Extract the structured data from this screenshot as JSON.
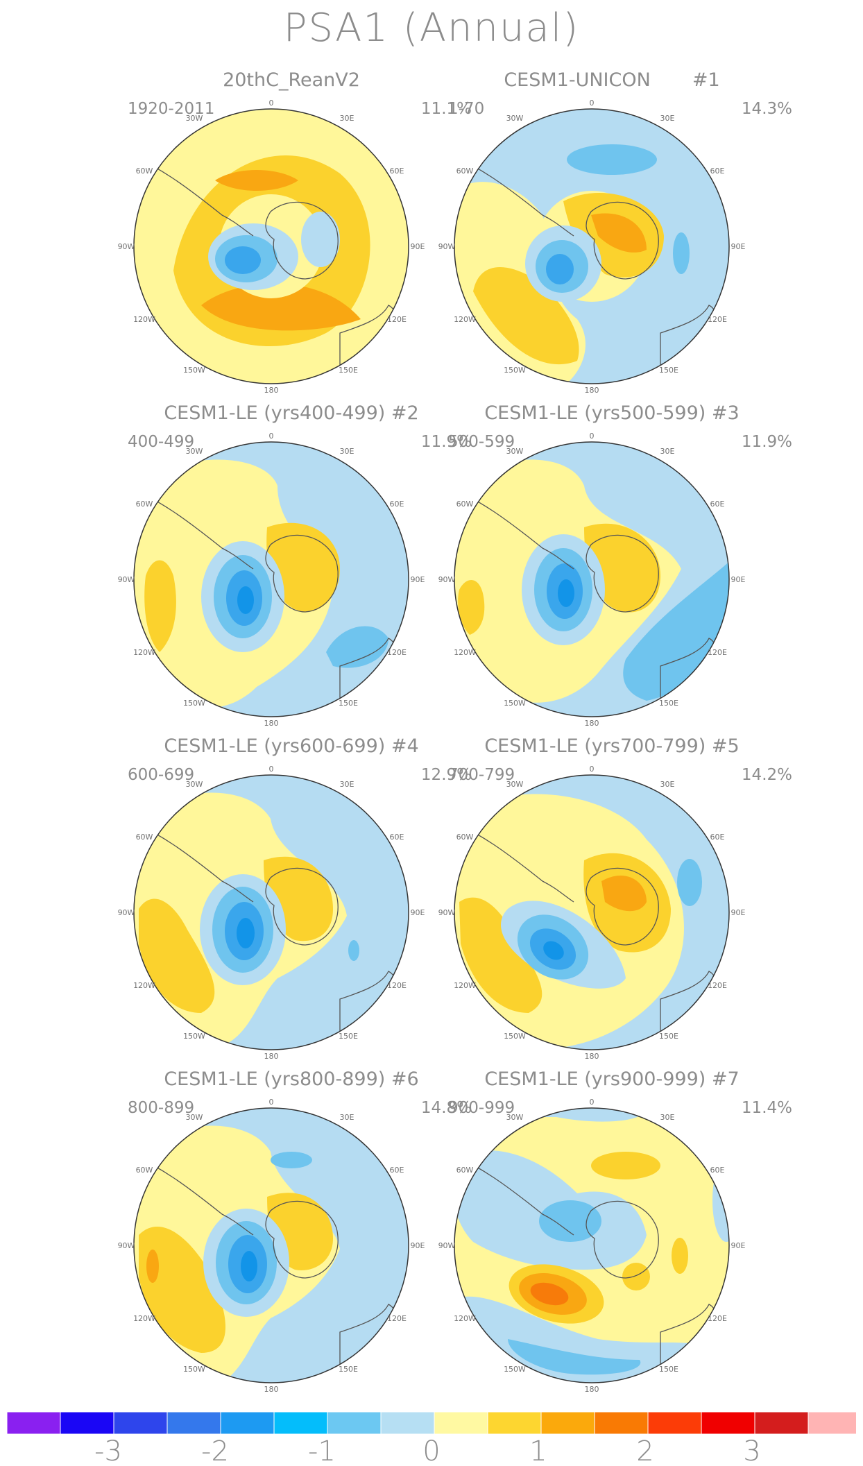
{
  "title": "PSA1 (Annual)",
  "colors": {
    "c_neg1": "#b5dcf2",
    "c_neg2": "#6fc4ee",
    "c_neg3": "#3aa6ec",
    "c_neg4": "#1294e8",
    "c_pos1": "#fff79a",
    "c_pos2": "#fbd22d",
    "c_pos3": "#f9a712",
    "c_pos4": "#f77b0a",
    "coast": "#555555"
  },
  "lon_labels": [
    "0",
    "30E",
    "60E",
    "90E",
    "120E",
    "150E",
    "180",
    "150W",
    "120W",
    "90W",
    "60W",
    "30W"
  ],
  "panels": [
    {
      "id": "reanalysis",
      "title": "20thC_ReanV2",
      "years": "1920-2011",
      "percent": "11.1%"
    },
    {
      "id": "unicon",
      "title": "CESM1-UNICON       #1",
      "years": "1-70",
      "percent": "14.3%"
    },
    {
      "id": "le2",
      "title": "CESM1-LE (yrs400-499) #2",
      "years": "400-499",
      "percent": "11.9%"
    },
    {
      "id": "le3",
      "title": "CESM1-LE (yrs500-599) #3",
      "years": "500-599",
      "percent": "11.9%"
    },
    {
      "id": "le4",
      "title": "CESM1-LE (yrs600-699) #4",
      "years": "600-699",
      "percent": "12.9%"
    },
    {
      "id": "le5",
      "title": "CESM1-LE (yrs700-799) #5",
      "years": "700-799",
      "percent": "14.2%"
    },
    {
      "id": "le6",
      "title": "CESM1-LE (yrs800-899) #6",
      "years": "800-899",
      "percent": "14.8%"
    },
    {
      "id": "le7",
      "title": "CESM1-LE (yrs900-999) #7",
      "years": "900-999",
      "percent": "11.4%"
    }
  ],
  "colorbar": {
    "colors": [
      "#8a20f0",
      "#1a06f5",
      "#2e45ec",
      "#3478ec",
      "#1d9af2",
      "#04bdfb",
      "#6cc8f2",
      "#b6dff3",
      "#fff9a2",
      "#fdd630",
      "#fba90c",
      "#f97a04",
      "#fc3c07",
      "#f00000",
      "#d41d1d",
      "#ffb4b4"
    ],
    "labels": [
      "-3",
      "-2",
      "-1",
      "0",
      "1",
      "2",
      "3"
    ]
  }
}
